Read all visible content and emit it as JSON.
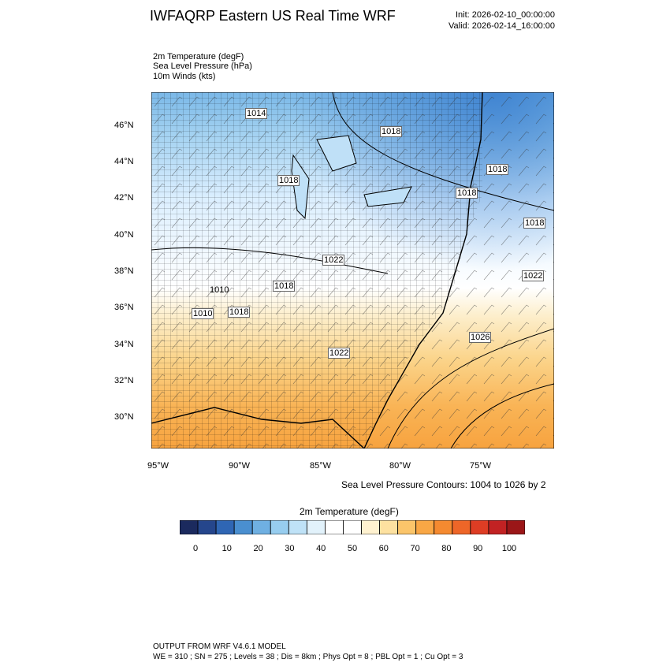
{
  "header": {
    "title": "IWFAQRP Eastern US Real Time WRF",
    "init": "Init: 2026-02-10_00:00:00",
    "valid": "Valid: 2026-02-14_16:00:00"
  },
  "fields": [
    "2m Temperature   (degF)",
    "Sea Level Pressure   (hPa)",
    "10m Winds   (kts)"
  ],
  "axes": {
    "lat_labels": [
      "46°N",
      "44°N",
      "42°N",
      "40°N",
      "38°N",
      "36°N",
      "34°N",
      "32°N",
      "30°N"
    ],
    "lon_labels": [
      "95°W",
      "90°W",
      "85°W",
      "80°W",
      "75°W"
    ]
  },
  "pressure_labels": [
    "1014",
    "1018",
    "1018",
    "1018",
    "1018",
    "1018",
    "1022",
    "1018",
    "1018",
    "1022",
    "1022",
    "1026",
    "1010",
    "1010"
  ],
  "slp_note": "Sea Level Pressure Contours: 1004 to 1026 by 2",
  "colorbar": {
    "title": "2m Temperature  (degF)",
    "colors": [
      "#1b2a5e",
      "#25468c",
      "#2f66b4",
      "#4a8fd0",
      "#6fb0e2",
      "#97cdef",
      "#bfe2f7",
      "#e2f2fb",
      "#ffffff",
      "#ffffff",
      "#fff2d0",
      "#fde1a0",
      "#fbc56a",
      "#f9a745",
      "#f58a30",
      "#ee6628",
      "#de3d24",
      "#c22223",
      "#9b1618"
    ],
    "labels": [
      "0",
      "10",
      "20",
      "30",
      "40",
      "50",
      "60",
      "70",
      "80",
      "90",
      "100"
    ]
  },
  "footer": {
    "line1": "OUTPUT FROM WRF V4.6.1 MODEL",
    "line2": "WE = 310 ; SN = 275 ; Levels = 38 ; Dis = 8km ; Phys Opt = 8 ; PBL Opt = 1 ; Cu Opt = 3"
  }
}
